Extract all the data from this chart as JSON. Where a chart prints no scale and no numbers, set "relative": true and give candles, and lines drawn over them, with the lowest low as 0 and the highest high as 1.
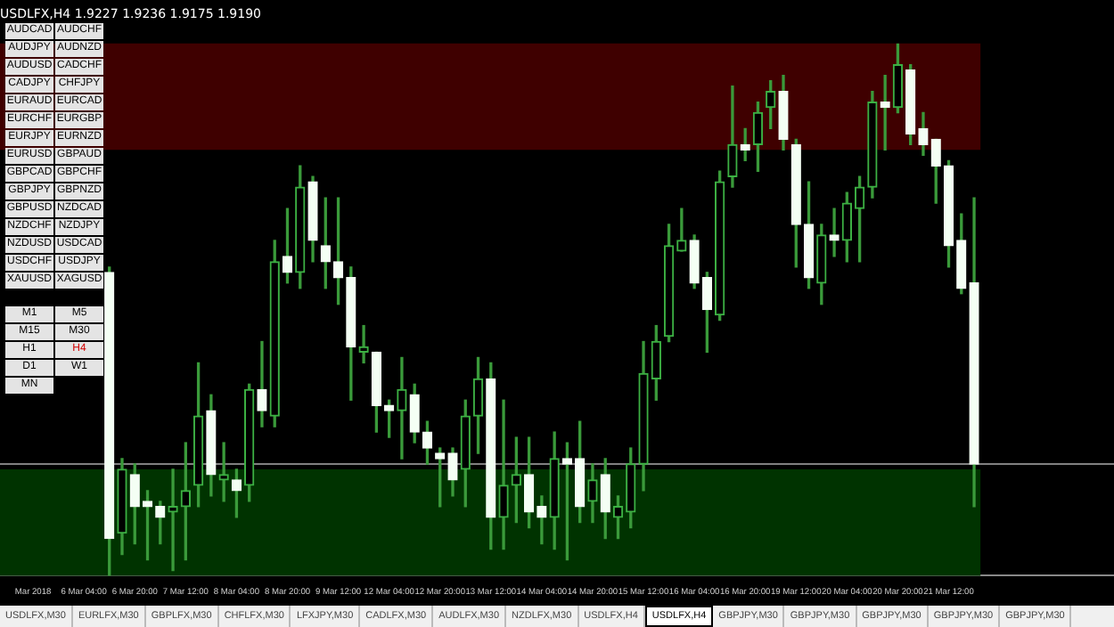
{
  "chart_data": {
    "type": "candlestick",
    "title": "USDLFX,H4 1.9227 1.9236 1.9175 1.9190",
    "relative": true,
    "categories": [
      "Mar 2018",
      null,
      null,
      null,
      "6 Mar 04:00",
      null,
      null,
      null,
      "6 Mar 20:00",
      null,
      null,
      null,
      "7 Mar 12:00",
      null,
      null,
      null,
      "8 Mar 04:00",
      null,
      null,
      null,
      "8 Mar 20:00",
      null,
      null,
      null,
      "9 Mar 12:00",
      null,
      null,
      null,
      "12 Mar 04:00",
      null,
      null,
      null,
      "12 Mar 20:00",
      null,
      null,
      null,
      "13 Mar 12:00",
      null,
      null,
      null,
      "14 Mar 04:00",
      null,
      null,
      null,
      "14 Mar 20:00",
      null,
      null,
      null,
      "15 Mar 12:00",
      null,
      null,
      null,
      "16 Mar 04:00",
      null,
      null,
      null,
      "16 Mar 20:00",
      null,
      null,
      null,
      "19 Mar 12:00",
      null,
      null,
      null,
      "20 Mar 04:00",
      null,
      null,
      null,
      "20 Mar 20:00",
      null,
      null,
      null,
      "21 Mar 12:00",
      null,
      null
    ],
    "ohlc": [
      null,
      null,
      null,
      null,
      null,
      null,
      [
        0.57,
        0.58,
        0,
        0.07
      ],
      [
        0.08,
        0.22,
        0.04,
        0.2
      ],
      [
        0.19,
        0.21,
        0.06,
        0.13
      ],
      [
        0.14,
        0.16,
        0.03,
        0.13
      ],
      [
        0.13,
        0.14,
        0.06,
        0.11
      ],
      [
        0.12,
        0.2,
        0.01,
        0.13
      ],
      [
        0.13,
        0.25,
        0.03,
        0.16
      ],
      [
        0.17,
        0.4,
        0.13,
        0.3
      ],
      [
        0.31,
        0.34,
        0.15,
        0.19
      ],
      [
        0.18,
        0.25,
        0.14,
        0.19
      ],
      [
        0.18,
        0.2,
        0.11,
        0.16
      ],
      [
        0.17,
        0.36,
        0.14,
        0.35
      ],
      [
        0.35,
        0.44,
        0.28,
        0.31
      ],
      [
        0.3,
        0.63,
        0.28,
        0.59
      ],
      [
        0.6,
        0.69,
        0.55,
        0.57
      ],
      [
        0.57,
        0.77,
        0.54,
        0.73
      ],
      [
        0.74,
        0.75,
        0.59,
        0.63
      ],
      [
        0.62,
        0.71,
        0.54,
        0.59
      ],
      [
        0.59,
        0.71,
        0.51,
        0.56
      ],
      [
        0.56,
        0.58,
        0.33,
        0.43
      ],
      [
        0.42,
        0.47,
        0.4,
        0.43
      ],
      [
        0.42,
        0.42,
        0.27,
        0.32
      ],
      [
        0.32,
        0.33,
        0.26,
        0.31
      ],
      [
        0.31,
        0.41,
        0.22,
        0.35
      ],
      [
        0.34,
        0.36,
        0.25,
        0.27
      ],
      [
        0.27,
        0.29,
        0.21,
        0.24
      ],
      [
        0.23,
        0.24,
        0.13,
        0.22
      ],
      [
        0.23,
        0.24,
        0.15,
        0.18
      ],
      [
        0.2,
        0.33,
        0.13,
        0.3
      ],
      [
        0.3,
        0.41,
        0.23,
        0.37
      ],
      [
        0.37,
        0.4,
        0.05,
        0.11
      ],
      [
        0.11,
        0.33,
        0.05,
        0.17
      ],
      [
        0.17,
        0.26,
        0.1,
        0.19
      ],
      [
        0.19,
        0.26,
        0.09,
        0.12
      ],
      [
        0.13,
        0.15,
        0.06,
        0.11
      ],
      [
        0.11,
        0.27,
        0.05,
        0.22
      ],
      [
        0.22,
        0.25,
        0.03,
        0.21
      ],
      [
        0.22,
        0.29,
        0.1,
        0.13
      ],
      [
        0.14,
        0.21,
        0.1,
        0.18
      ],
      [
        0.19,
        0.22,
        0.07,
        0.12
      ],
      [
        0.11,
        0.15,
        0.07,
        0.13
      ],
      [
        0.12,
        0.24,
        0.09,
        0.21
      ],
      [
        0.21,
        0.44,
        0.16,
        0.38
      ],
      [
        0.37,
        0.47,
        0.33,
        0.44
      ],
      [
        0.45,
        0.66,
        0.44,
        0.62
      ],
      [
        0.61,
        0.69,
        0.61,
        0.63
      ],
      [
        0.63,
        0.64,
        0.54,
        0.55
      ],
      [
        0.56,
        0.57,
        0.42,
        0.5
      ],
      [
        0.49,
        0.76,
        0.48,
        0.74
      ],
      [
        0.75,
        0.92,
        0.73,
        0.81
      ],
      [
        0.81,
        0.84,
        0.78,
        0.8
      ],
      [
        0.81,
        0.89,
        0.76,
        0.87
      ],
      [
        0.88,
        0.93,
        0.84,
        0.91
      ],
      [
        0.91,
        0.94,
        0.8,
        0.82
      ],
      [
        0.81,
        0.82,
        0.58,
        0.66
      ],
      [
        0.66,
        0.74,
        0.54,
        0.56
      ],
      [
        0.55,
        0.66,
        0.51,
        0.64
      ],
      [
        0.64,
        0.69,
        0.6,
        0.63
      ],
      [
        0.63,
        0.72,
        0.59,
        0.7
      ],
      [
        0.69,
        0.75,
        0.59,
        0.73
      ],
      [
        0.73,
        0.91,
        0.71,
        0.89
      ],
      [
        0.89,
        0.94,
        0.8,
        0.88
      ],
      [
        0.88,
        1,
        0.87,
        0.96
      ],
      [
        0.95,
        0.96,
        0.81,
        0.83
      ],
      [
        0.84,
        0.87,
        0.79,
        0.81
      ],
      [
        0.82,
        0.82,
        0.7,
        0.77
      ],
      [
        0.77,
        0.78,
        0.58,
        0.62
      ],
      [
        0.63,
        0.68,
        0.53,
        0.54
      ],
      [
        0.55,
        0.71,
        0.13,
        0.21
      ]
    ],
    "bands": [
      {
        "axis": "y",
        "from": 0.8,
        "to": 1,
        "color": "#3f0000"
      },
      {
        "axis": "y",
        "from": 0,
        "to": 0.2,
        "color": "#003300"
      }
    ],
    "ref_lines": [
      {
        "axis": "y",
        "value": 0.21,
        "color": "#808080"
      }
    ],
    "annotations": [
      "AUDCAD",
      "AUDCHF",
      "AUDJPY",
      "AUDNZD",
      "AUDUSD",
      "CADCHF",
      "CADJPY",
      "CHFJPY",
      "EURAUD",
      "EURCAD",
      "EURCHF",
      "EURGBP",
      "EURJPY",
      "EURNZD",
      "EURUSD",
      "GBPAUD",
      "GBPCAD",
      "GBPCHF",
      "GBPJPY",
      "GBPNZD",
      "GBPUSD",
      "NZDCAD",
      "NZDCHF",
      "NZDJPY",
      "NZDUSD",
      "USDCAD",
      "USDCHF",
      "USDJPY",
      "XAUUSD",
      "XAGUSD",
      "M1",
      "M5",
      "M15",
      "M30",
      "H1",
      "H4",
      "D1",
      "W1",
      "MN",
      "USDLFX,M30",
      "EURLFX,M30",
      "GBPLFX,M30",
      "CHFLFX,M30",
      "LFXJPY,M30",
      "CADLFX,M30",
      "AUDLFX,M30",
      "NZDLFX,M30",
      "USDLFX,H4",
      "USDLFX,H4",
      "GBPJPY,M30",
      "GBPJPY,M30",
      "GBPJPY,M30",
      "GBPJPY,M30",
      "GBPJPY,M30"
    ]
  }
}
